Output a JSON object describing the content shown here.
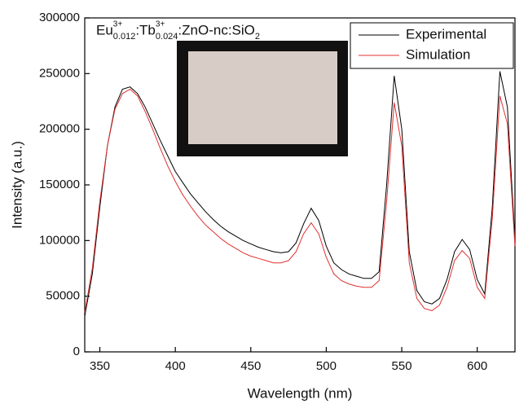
{
  "chart_data": {
    "type": "line",
    "title_parts": [
      {
        "base": "Eu",
        "sup": "3+",
        "sub": "0.012"
      },
      {
        "base": ":Tb",
        "sup": "3+",
        "sub": "0.024"
      },
      {
        "base": ":ZnO-nc:SiO",
        "sub": "2"
      }
    ],
    "x_label": "Wavelength (nm)",
    "y_label": "Intensity (a.u.)",
    "x": [
      340,
      345,
      350,
      355,
      360,
      365,
      370,
      375,
      380,
      385,
      390,
      395,
      400,
      405,
      410,
      415,
      420,
      425,
      430,
      435,
      440,
      445,
      450,
      455,
      460,
      465,
      470,
      475,
      480,
      485,
      490,
      495,
      500,
      505,
      510,
      515,
      520,
      525,
      530,
      535,
      540,
      545,
      550,
      555,
      560,
      565,
      570,
      575,
      580,
      585,
      590,
      595,
      600,
      605,
      610,
      615,
      620,
      625
    ],
    "series": [
      {
        "name": "Experimental",
        "color": "#000000",
        "values": [
          32000,
          70000,
          130000,
          185000,
          220000,
          236000,
          238000,
          232000,
          220000,
          205000,
          190000,
          176000,
          162000,
          152000,
          142000,
          134000,
          126000,
          119000,
          113000,
          108000,
          104000,
          100000,
          97000,
          94000,
          92000,
          90000,
          89000,
          90000,
          98000,
          115000,
          129000,
          118000,
          95000,
          80000,
          74000,
          70000,
          68000,
          66000,
          66000,
          72000,
          150000,
          248000,
          200000,
          90000,
          55000,
          45000,
          43000,
          48000,
          65000,
          90000,
          101000,
          92000,
          65000,
          52000,
          130000,
          252000,
          220000,
          100000
        ]
      },
      {
        "name": "Simulation",
        "color": "#e03030",
        "values": [
          35000,
          75000,
          135000,
          185000,
          218000,
          232000,
          236000,
          230000,
          216000,
          200000,
          183000,
          167000,
          153000,
          141000,
          131000,
          122000,
          114000,
          108000,
          102000,
          97000,
          93000,
          89000,
          86000,
          84000,
          82000,
          80000,
          80000,
          82000,
          90000,
          106000,
          116000,
          106000,
          85000,
          70000,
          64000,
          61000,
          59000,
          58000,
          58000,
          64000,
          135000,
          224000,
          185000,
          80000,
          48000,
          39000,
          37000,
          42000,
          58000,
          82000,
          91000,
          84000,
          58000,
          48000,
          120000,
          230000,
          205000,
          95000
        ]
      }
    ],
    "xlim": [
      340,
      625
    ],
    "xticks": [
      350,
      400,
      450,
      500,
      550,
      600
    ],
    "ylim": [
      0,
      300000
    ],
    "yticks": [
      0,
      50000,
      100000,
      150000,
      200000,
      250000,
      300000
    ],
    "grid": false,
    "legend": "top-right"
  }
}
